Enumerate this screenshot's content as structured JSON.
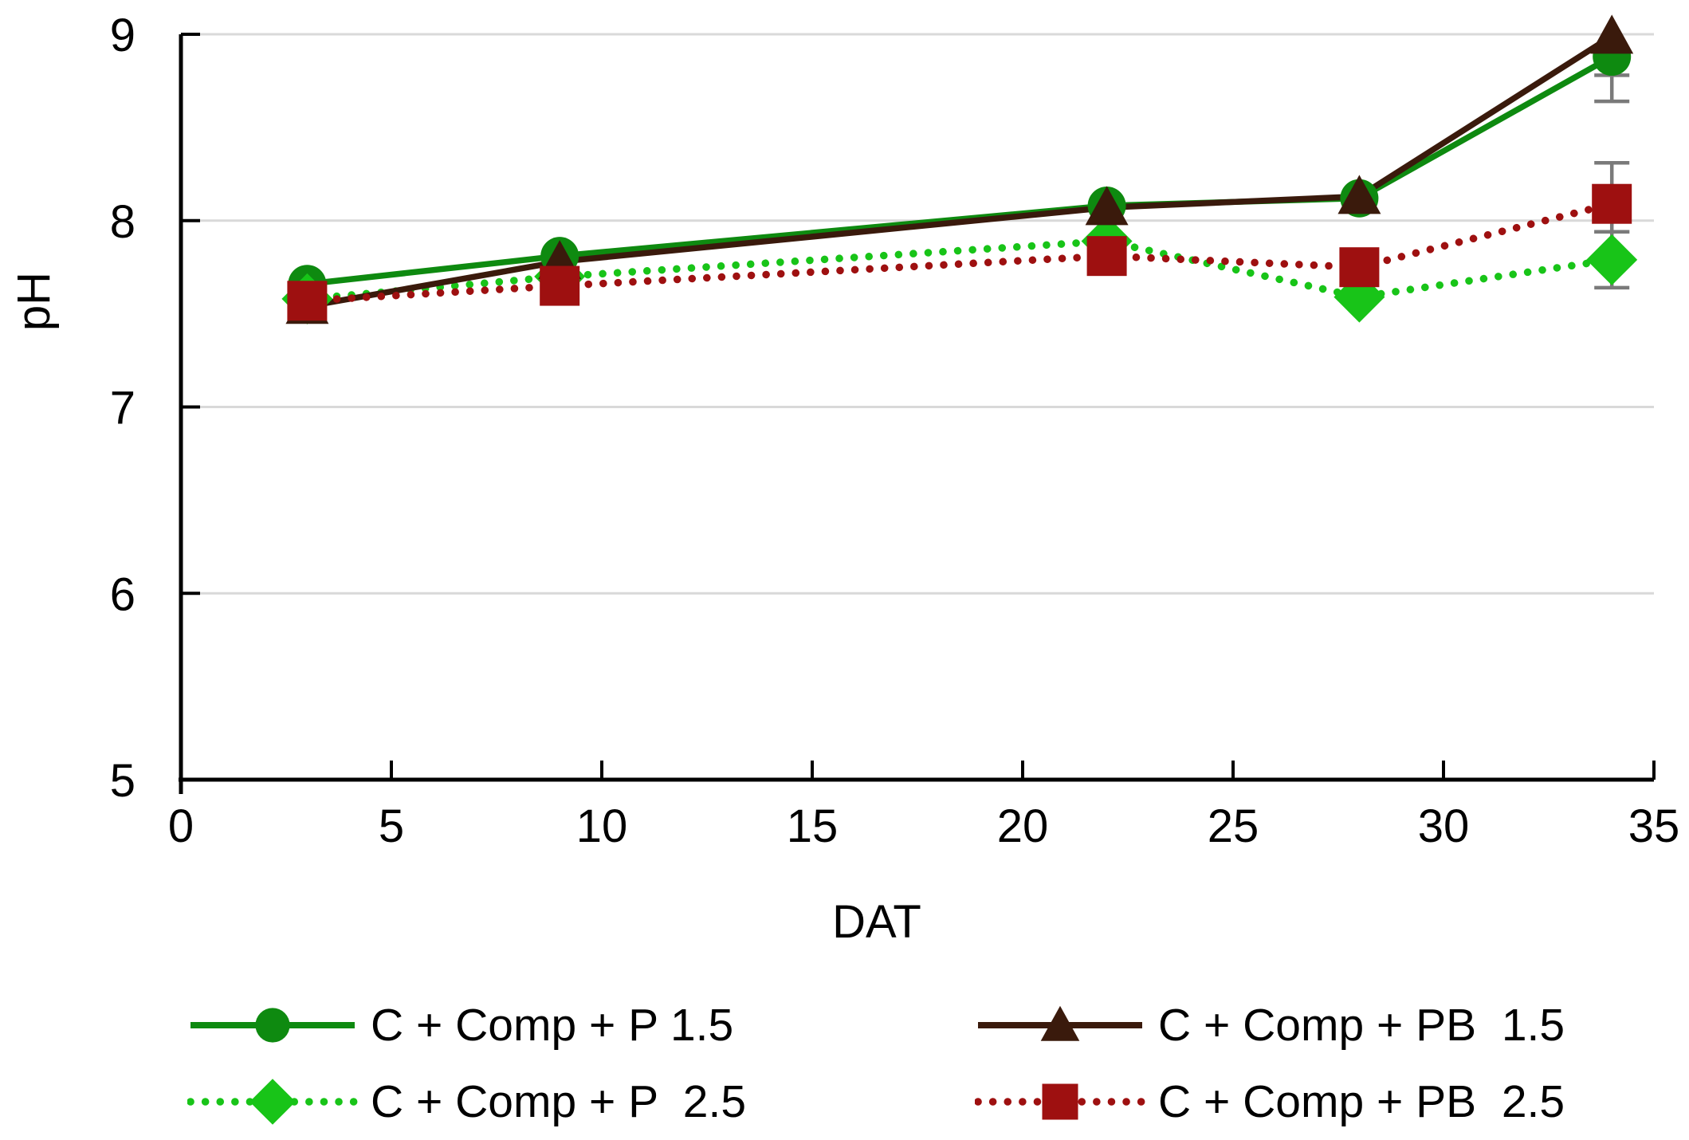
{
  "chart_data": {
    "type": "line",
    "title": "",
    "xlabel": "DAT",
    "ylabel": "pH",
    "xlim": [
      0,
      35
    ],
    "ylim": [
      5,
      9
    ],
    "xticks": [
      0,
      5,
      10,
      15,
      20,
      25,
      30,
      35
    ],
    "yticks": [
      5,
      6,
      7,
      8,
      9
    ],
    "grid": {
      "horizontal_at": [
        6,
        7,
        8,
        9
      ],
      "color": "#d9d9d9"
    },
    "axis_color": "#000000",
    "error_bar_color": "#7a7a7a",
    "x": [
      3,
      9,
      22,
      28,
      34
    ],
    "series": [
      {
        "name": "C + Comp + P 1.5",
        "marker": "circle",
        "line": "solid",
        "color": "#0e8a10",
        "values": [
          7.66,
          7.81,
          8.08,
          8.12,
          8.88
        ]
      },
      {
        "name": "C + Comp + P  2.5",
        "marker": "diamond",
        "line": "dotted",
        "color": "#18c418",
        "values": [
          7.58,
          7.7,
          7.89,
          7.59,
          7.79
        ]
      },
      {
        "name": "C + Comp + PB  1.5",
        "marker": "triangle",
        "line": "solid",
        "color": "#3a1a0c",
        "values": [
          7.54,
          7.78,
          8.07,
          8.13,
          8.99
        ]
      },
      {
        "name": "C + Comp + PB  2.5",
        "marker": "square",
        "line": "dotted",
        "color": "#9e1010",
        "values": [
          7.57,
          7.65,
          7.81,
          7.75,
          8.09
        ]
      }
    ],
    "error_bars": [
      {
        "series_index": 0,
        "x": 34,
        "low": 8.64,
        "high": null
      },
      {
        "series_index": 2,
        "x": 34,
        "low": 8.78,
        "high": null
      },
      {
        "series_index": 3,
        "x": 34,
        "low": 7.94,
        "high": 8.31
      },
      {
        "series_index": 1,
        "x": 34,
        "low": 7.64,
        "high": 7.94
      }
    ],
    "legend_position": "bottom",
    "legend_layout": [
      [
        0,
        2
      ],
      [
        1,
        3
      ]
    ]
  }
}
